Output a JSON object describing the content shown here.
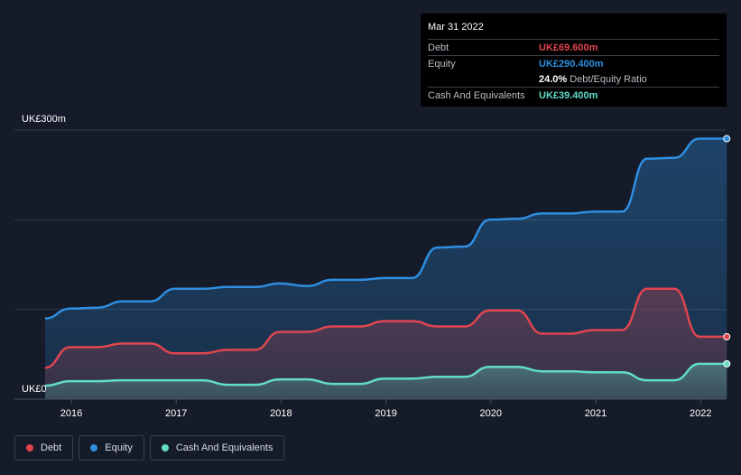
{
  "colors": {
    "background": "#151b28",
    "debt": "#e0454f",
    "equity": "#2e8ee0",
    "cash": "#63dcc6",
    "grid": "#323846",
    "axis_text": "#ffffff"
  },
  "tooltip": {
    "date": "Mar 31 2022",
    "debt_label": "Debt",
    "debt_value": "UK£69.600m",
    "equity_label": "Equity",
    "equity_value": "UK£290.400m",
    "ratio_value": "24.0%",
    "ratio_label": "Debt/Equity Ratio",
    "cash_label": "Cash And Equivalents",
    "cash_value": "UK£39.400m"
  },
  "legend": {
    "debt": "Debt",
    "equity": "Equity",
    "cash": "Cash And Equivalents"
  },
  "chart_data": {
    "type": "area",
    "title": "",
    "xlabel": "",
    "ylabel": "",
    "y_axis_labels": [
      "UK£300m",
      "UK£0"
    ],
    "ylim": [
      0,
      300
    ],
    "xlim": [
      2015.75,
      2022.25
    ],
    "x_ticks": [
      2016,
      2017,
      2018,
      2019,
      2020,
      2021,
      2022
    ],
    "x_tick_labels": [
      "2016",
      "2017",
      "2018",
      "2019",
      "2020",
      "2021",
      "2022"
    ],
    "grid": true,
    "legend_position": "bottom-left",
    "series": [
      {
        "name": "Equity",
        "key": "equity",
        "points": [
          [
            2015.75,
            90
          ],
          [
            2015.99,
            101
          ],
          [
            2016.25,
            102
          ],
          [
            2016.49,
            109
          ],
          [
            2016.75,
            109
          ],
          [
            2016.99,
            123
          ],
          [
            2017.25,
            123
          ],
          [
            2017.49,
            125
          ],
          [
            2017.75,
            125
          ],
          [
            2017.99,
            129
          ],
          [
            2018.25,
            126
          ],
          [
            2018.49,
            133
          ],
          [
            2018.75,
            133
          ],
          [
            2018.99,
            135
          ],
          [
            2019.25,
            135
          ],
          [
            2019.49,
            169
          ],
          [
            2019.75,
            170
          ],
          [
            2019.99,
            200
          ],
          [
            2020.25,
            201
          ],
          [
            2020.49,
            207
          ],
          [
            2020.75,
            207
          ],
          [
            2020.99,
            209
          ],
          [
            2021.25,
            209
          ],
          [
            2021.49,
            268
          ],
          [
            2021.75,
            269
          ],
          [
            2021.99,
            290.4
          ],
          [
            2022.25,
            290.4
          ]
        ]
      },
      {
        "name": "Debt",
        "key": "debt",
        "points": [
          [
            2015.75,
            35
          ],
          [
            2015.99,
            58
          ],
          [
            2016.25,
            58
          ],
          [
            2016.49,
            62
          ],
          [
            2016.75,
            62
          ],
          [
            2016.99,
            51
          ],
          [
            2017.25,
            51
          ],
          [
            2017.49,
            55
          ],
          [
            2017.75,
            55
          ],
          [
            2017.99,
            75
          ],
          [
            2018.25,
            75
          ],
          [
            2018.49,
            81
          ],
          [
            2018.75,
            81
          ],
          [
            2018.99,
            87
          ],
          [
            2019.25,
            87
          ],
          [
            2019.49,
            81
          ],
          [
            2019.75,
            81
          ],
          [
            2019.99,
            99
          ],
          [
            2020.25,
            99
          ],
          [
            2020.49,
            73
          ],
          [
            2020.75,
            73
          ],
          [
            2020.99,
            77
          ],
          [
            2021.25,
            77
          ],
          [
            2021.49,
            123
          ],
          [
            2021.75,
            123
          ],
          [
            2021.99,
            69.6
          ],
          [
            2022.25,
            69.6
          ]
        ]
      },
      {
        "name": "Cash And Equivalents",
        "key": "cash",
        "points": [
          [
            2015.75,
            15
          ],
          [
            2015.99,
            20
          ],
          [
            2016.25,
            20
          ],
          [
            2016.49,
            21
          ],
          [
            2016.75,
            21
          ],
          [
            2016.99,
            21
          ],
          [
            2017.25,
            21
          ],
          [
            2017.49,
            16
          ],
          [
            2017.75,
            16
          ],
          [
            2017.99,
            22
          ],
          [
            2018.25,
            22
          ],
          [
            2018.49,
            17
          ],
          [
            2018.75,
            17
          ],
          [
            2018.99,
            23
          ],
          [
            2019.25,
            23
          ],
          [
            2019.49,
            25
          ],
          [
            2019.75,
            25
          ],
          [
            2019.99,
            36
          ],
          [
            2020.25,
            36
          ],
          [
            2020.49,
            31
          ],
          [
            2020.75,
            31
          ],
          [
            2020.99,
            30
          ],
          [
            2021.25,
            30
          ],
          [
            2021.49,
            21
          ],
          [
            2021.75,
            21
          ],
          [
            2021.99,
            39.4
          ],
          [
            2022.25,
            39.4
          ]
        ]
      }
    ]
  }
}
